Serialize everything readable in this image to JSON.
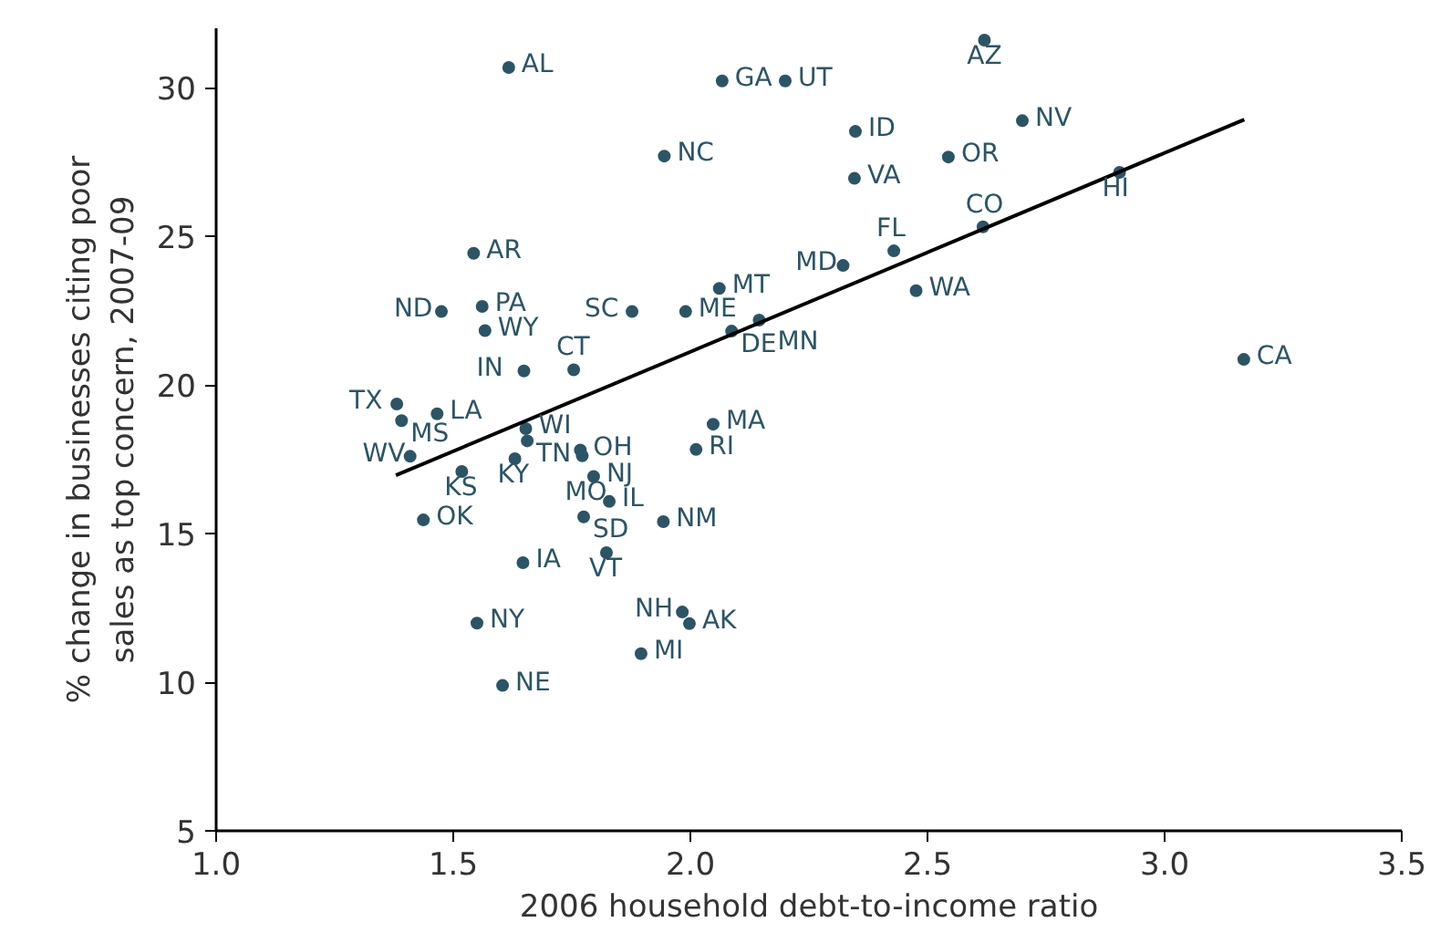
{
  "chart_data": {
    "type": "scatter",
    "xlabel": "2006 household debt-to-income ratio",
    "ylabel": "% change in businesses citing poor\nsales as top concern, 2007-09",
    "xlim": [
      1.0,
      3.5
    ],
    "ylim": [
      5,
      32
    ],
    "xticks": [
      {
        "value": 1.0,
        "label": "1.0"
      },
      1.5,
      {
        "value": 2.0,
        "label": "2.0"
      },
      2.5,
      {
        "value": 3.0,
        "label": "3.0"
      },
      3.5
    ],
    "yticks": [
      5,
      10,
      15,
      20,
      25,
      30
    ],
    "grid": false,
    "series": [
      {
        "marker": "circle",
        "color": "#2b5566",
        "x": [
          2.62,
          1.617,
          2.067,
          2.2,
          1.945,
          2.348,
          2.346,
          2.544,
          2.7,
          2.617,
          2.905,
          3.167,
          2.429,
          2.322,
          2.476,
          2.061,
          1.877,
          1.99,
          2.087,
          2.145,
          1.543,
          1.475,
          1.561,
          1.567,
          1.649,
          1.754,
          1.381,
          1.391,
          1.466,
          1.653,
          1.656,
          1.409,
          1.518,
          1.63,
          1.768,
          1.772,
          1.796,
          1.829,
          2.048,
          2.012,
          1.437,
          1.775,
          1.943,
          1.647,
          1.823,
          1.983,
          1.998,
          1.55,
          1.896,
          1.604
        ],
        "values": [
          31.6,
          30.68,
          30.23,
          30.23,
          27.7,
          28.53,
          26.95,
          27.67,
          28.89,
          25.32,
          27.15,
          20.86,
          24.51,
          24.02,
          23.17,
          23.25,
          22.47,
          22.47,
          21.81,
          22.18,
          24.43,
          22.47,
          22.64,
          21.83,
          20.47,
          20.51,
          19.36,
          18.8,
          19.03,
          18.53,
          18.12,
          17.6,
          17.09,
          17.52,
          17.81,
          17.62,
          16.92,
          16.08,
          18.68,
          17.83,
          15.46,
          15.56,
          15.4,
          14.02,
          14.36,
          12.36,
          11.97,
          11.99,
          10.96,
          9.89
        ]
      },
      {
        "type": "line",
        "marker": "none",
        "color": "#000000",
        "x": [
          1.379,
          3.168
        ],
        "values": [
          16.96,
          28.93
        ]
      }
    ],
    "annotations": [
      {
        "text": "AZ",
        "x": 2.62,
        "y": 31.6
      },
      {
        "text": "AL",
        "x": 1.617,
        "y": 30.68
      },
      {
        "text": "GA",
        "x": 2.067,
        "y": 30.23
      },
      {
        "text": "UT",
        "x": 2.2,
        "y": 30.23
      },
      {
        "text": "NC",
        "x": 1.945,
        "y": 27.7
      },
      {
        "text": "ID",
        "x": 2.348,
        "y": 28.53
      },
      {
        "text": "VA",
        "x": 2.346,
        "y": 26.95
      },
      {
        "text": "OR",
        "x": 2.544,
        "y": 27.67
      },
      {
        "text": "NV",
        "x": 2.7,
        "y": 28.89
      },
      {
        "text": "CO",
        "x": 2.617,
        "y": 25.32
      },
      {
        "text": "HI",
        "x": 2.905,
        "y": 27.15
      },
      {
        "text": "CA",
        "x": 3.167,
        "y": 20.86
      },
      {
        "text": "FL",
        "x": 2.429,
        "y": 24.51
      },
      {
        "text": "MD",
        "x": 2.322,
        "y": 24.02
      },
      {
        "text": "WA",
        "x": 2.476,
        "y": 23.17
      },
      {
        "text": "MT",
        "x": 2.061,
        "y": 23.25
      },
      {
        "text": "SC",
        "x": 1.877,
        "y": 22.47
      },
      {
        "text": "ME",
        "x": 1.99,
        "y": 22.47
      },
      {
        "text": "DE",
        "x": 2.087,
        "y": 21.81
      },
      {
        "text": "MN",
        "x": 2.145,
        "y": 22.18
      },
      {
        "text": "AR",
        "x": 1.543,
        "y": 24.43
      },
      {
        "text": "ND",
        "x": 1.475,
        "y": 22.47
      },
      {
        "text": "PA",
        "x": 1.561,
        "y": 22.64
      },
      {
        "text": "WY",
        "x": 1.567,
        "y": 21.83
      },
      {
        "text": "IN",
        "x": 1.649,
        "y": 20.47
      },
      {
        "text": "CT",
        "x": 1.754,
        "y": 20.51
      },
      {
        "text": "TX",
        "x": 1.381,
        "y": 19.36
      },
      {
        "text": "MS",
        "x": 1.391,
        "y": 18.8
      },
      {
        "text": "LA",
        "x": 1.466,
        "y": 19.03
      },
      {
        "text": "WI",
        "x": 1.653,
        "y": 18.53
      },
      {
        "text": "TN",
        "x": 1.656,
        "y": 18.12
      },
      {
        "text": "WV",
        "x": 1.409,
        "y": 17.6
      },
      {
        "text": "KS",
        "x": 1.518,
        "y": 17.09
      },
      {
        "text": "KY",
        "x": 1.63,
        "y": 17.52
      },
      {
        "text": "OH",
        "x": 1.768,
        "y": 17.81
      },
      {
        "text": "MO",
        "x": 1.772,
        "y": 17.62
      },
      {
        "text": "NJ",
        "x": 1.796,
        "y": 16.92
      },
      {
        "text": "IL",
        "x": 1.829,
        "y": 16.08
      },
      {
        "text": "MA",
        "x": 2.048,
        "y": 18.68
      },
      {
        "text": "RI",
        "x": 2.012,
        "y": 17.83
      },
      {
        "text": "OK",
        "x": 1.437,
        "y": 15.46
      },
      {
        "text": "SD",
        "x": 1.775,
        "y": 15.56
      },
      {
        "text": "NM",
        "x": 1.943,
        "y": 15.4
      },
      {
        "text": "IA",
        "x": 1.647,
        "y": 14.02
      },
      {
        "text": "VT",
        "x": 1.823,
        "y": 14.36
      },
      {
        "text": "NH",
        "x": 1.983,
        "y": 12.36
      },
      {
        "text": "AK",
        "x": 1.998,
        "y": 11.97
      },
      {
        "text": "NY",
        "x": 1.55,
        "y": 11.99
      },
      {
        "text": "MI",
        "x": 1.896,
        "y": 10.96
      },
      {
        "text": "NE",
        "x": 1.604,
        "y": 9.89
      }
    ]
  }
}
